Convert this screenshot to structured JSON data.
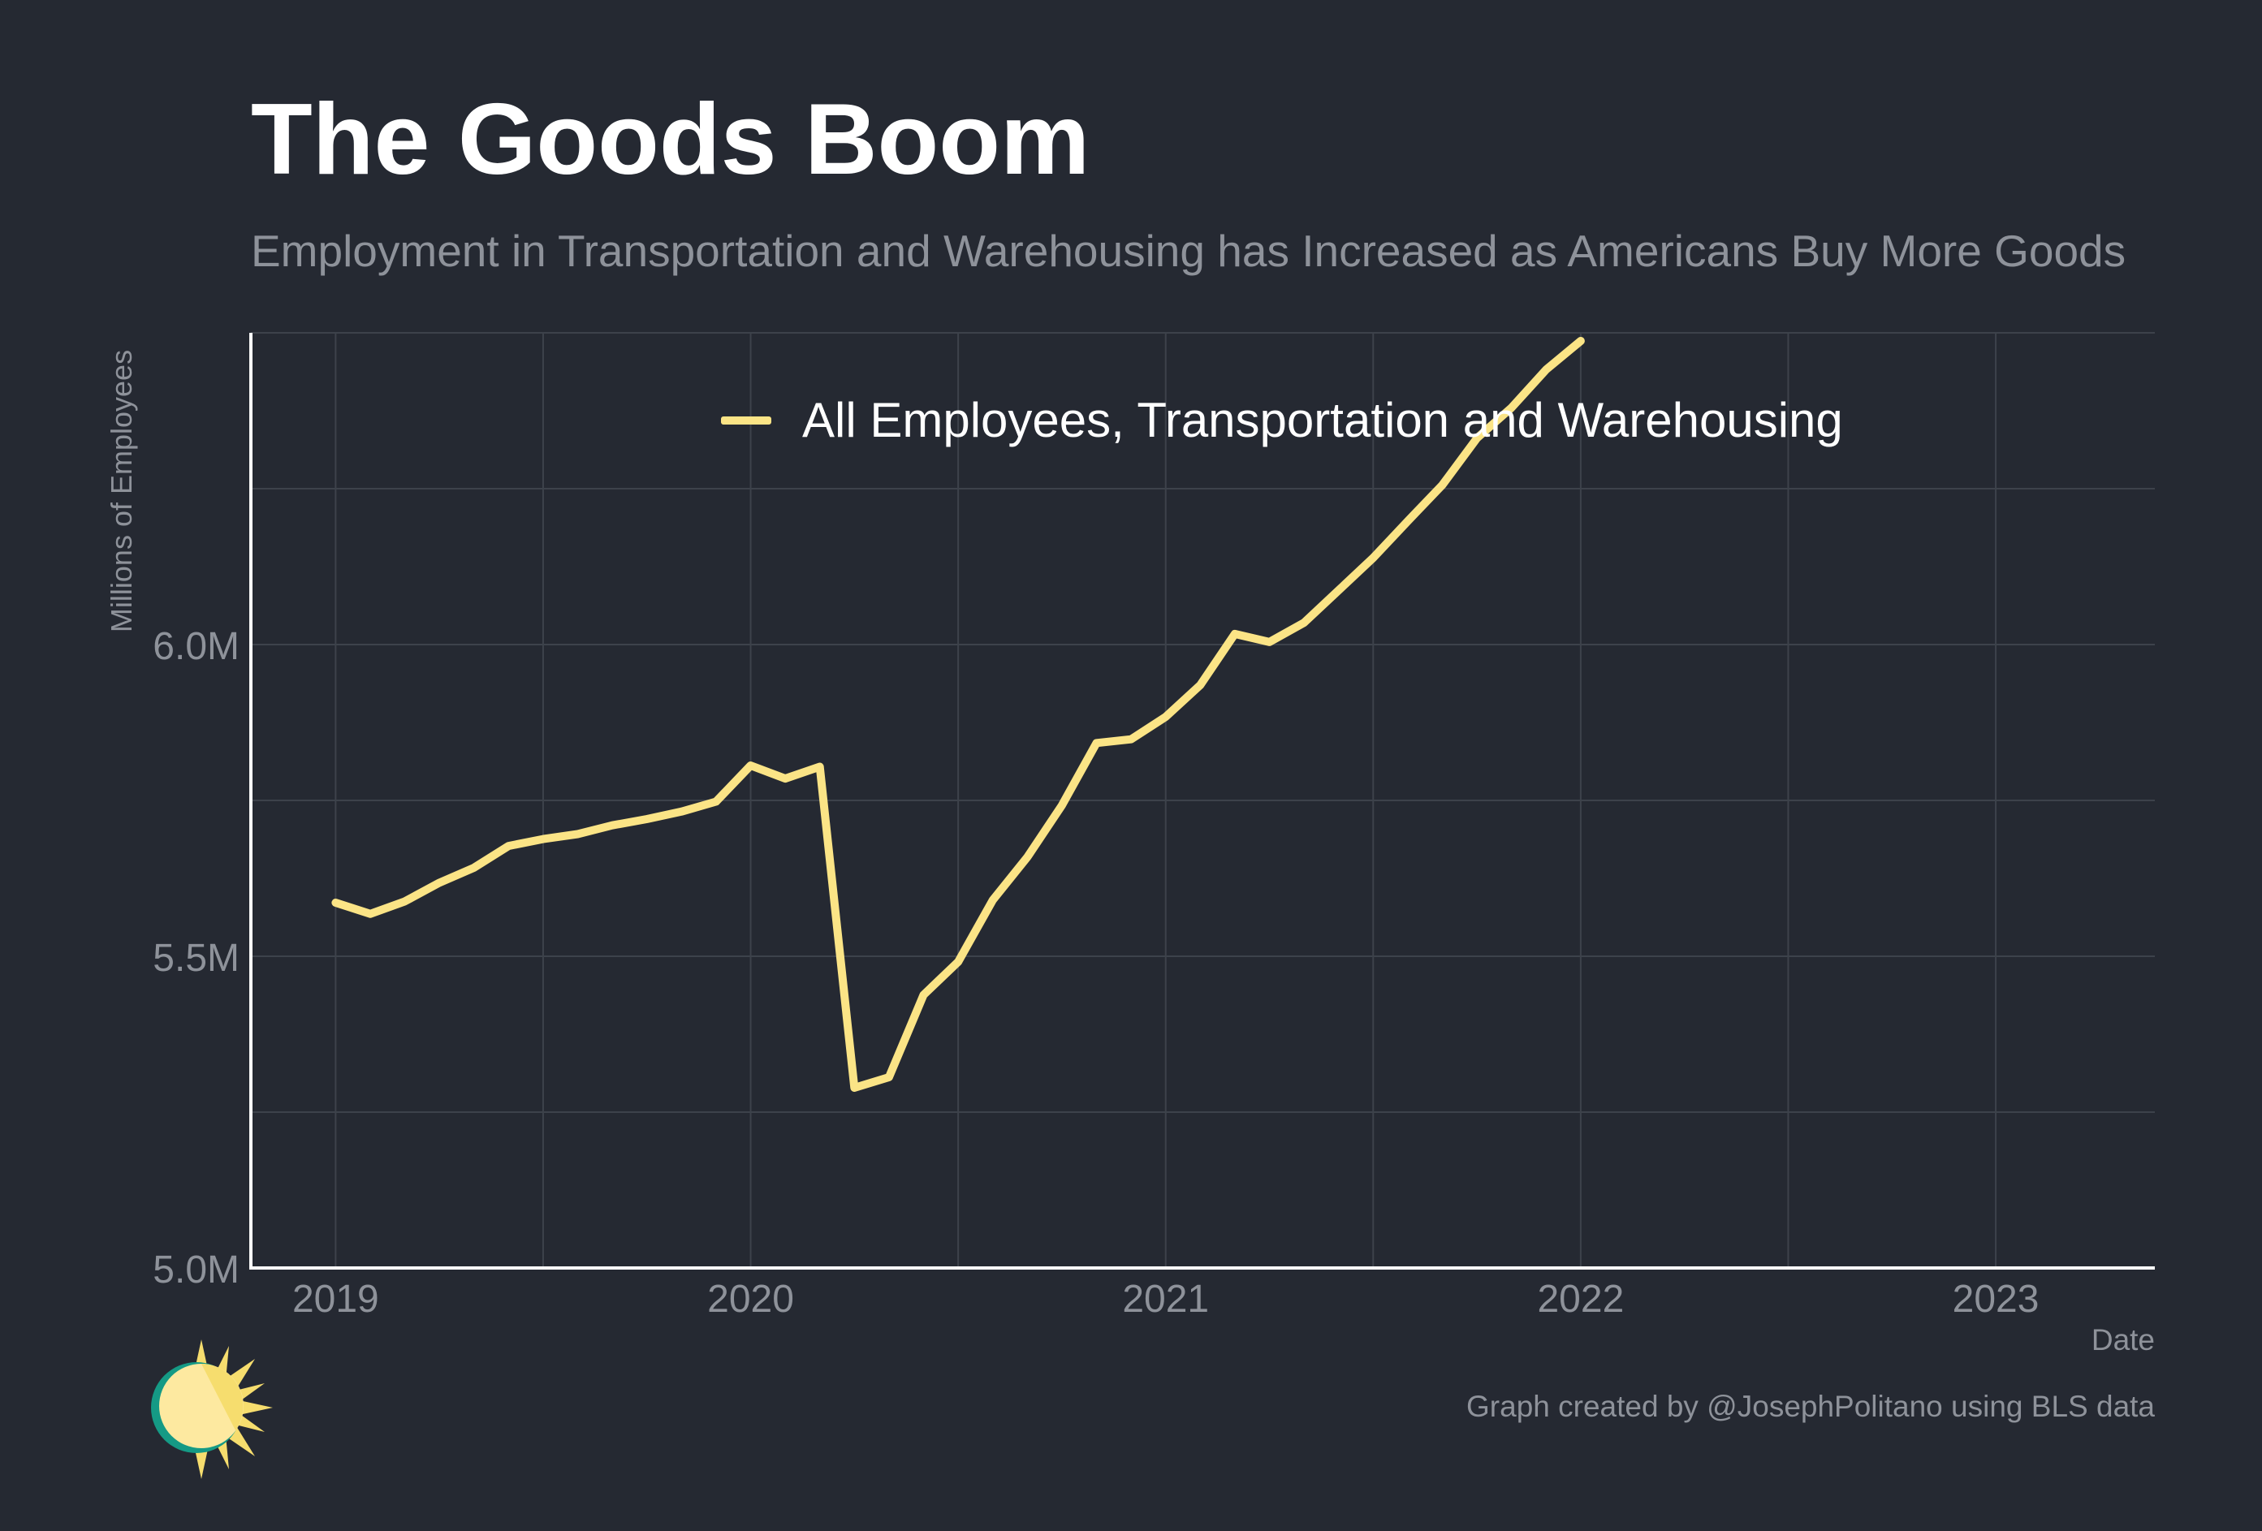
{
  "title": "The Goods Boom",
  "subtitle": "Employment in Transportation and Warehousing has Increased as Americans Buy More Goods",
  "credit": "Graph created by @JosephPolitano using BLS data",
  "logo_icon": "sun-icon",
  "colors": {
    "background": "#252932",
    "series": "#fbe486",
    "grid": "#3d424b",
    "axis": "#ffffff",
    "muted_text": "#8e929a"
  },
  "chart_data": {
    "type": "line",
    "title": "The Goods Boom",
    "xlabel": "Date",
    "ylabel": "Millions of Employees",
    "x_tick_labels": [
      "2019",
      "2020",
      "2021",
      "2022",
      "2023"
    ],
    "y_tick_labels": [
      "5.0M",
      "5.5M",
      "6.0M"
    ],
    "ylim": [
      5.0,
      6.5
    ],
    "xlim": [
      "2018-11",
      "2023-05"
    ],
    "grid": true,
    "legend_position": "top",
    "series": [
      {
        "name": "All Employees, Transportation and Warehousing",
        "color": "#fbe486",
        "x": [
          "2019-01",
          "2019-02",
          "2019-03",
          "2019-04",
          "2019-05",
          "2019-06",
          "2019-07",
          "2019-08",
          "2019-09",
          "2019-10",
          "2019-11",
          "2019-12",
          "2020-01",
          "2020-02",
          "2020-03",
          "2020-04",
          "2020-05",
          "2020-06",
          "2020-07",
          "2020-08",
          "2020-09",
          "2020-10",
          "2020-11",
          "2020-12",
          "2021-01",
          "2021-02",
          "2021-03",
          "2021-04",
          "2021-05",
          "2021-06",
          "2021-07",
          "2021-08",
          "2021-09",
          "2021-10",
          "2021-11",
          "2021-12",
          "2022-01"
        ],
        "values": [
          5.586,
          5.568,
          5.588,
          5.618,
          5.642,
          5.677,
          5.688,
          5.696,
          5.71,
          5.72,
          5.732,
          5.748,
          5.806,
          5.785,
          5.804,
          5.289,
          5.306,
          5.438,
          5.491,
          5.59,
          5.659,
          5.742,
          5.842,
          5.848,
          5.884,
          5.935,
          6.017,
          6.004,
          6.035,
          6.087,
          6.139,
          6.198,
          6.256,
          6.331,
          6.38,
          6.441,
          6.487
        ]
      }
    ]
  }
}
